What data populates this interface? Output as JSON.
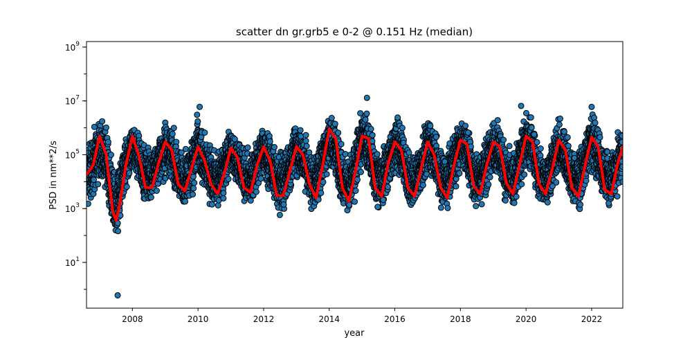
{
  "chart_data": {
    "type": "scatter",
    "title": "scatter dn gr.grb5 e 0-2 @ 0.151 Hz (median)",
    "xlabel": "year",
    "ylabel": "PSD in nm**2/s",
    "y_scale": "log",
    "xlim": [
      2006.6,
      2022.95
    ],
    "ylim": [
      0.2,
      1600000000
    ],
    "x_ticks": [
      {
        "value": 2008,
        "label": "2008"
      },
      {
        "value": 2010,
        "label": "2010"
      },
      {
        "value": 2012,
        "label": "2012"
      },
      {
        "value": 2014,
        "label": "2014"
      },
      {
        "value": 2016,
        "label": "2016"
      },
      {
        "value": 2018,
        "label": "2018"
      },
      {
        "value": 2020,
        "label": "2020"
      },
      {
        "value": 2022,
        "label": "2022"
      }
    ],
    "y_ticks": [
      {
        "value": 10,
        "base": "10",
        "exp": "1"
      },
      {
        "value": 1000,
        "base": "10",
        "exp": "3"
      },
      {
        "value": 100000,
        "base": "10",
        "exp": "5"
      },
      {
        "value": 10000000,
        "base": "10",
        "exp": "7"
      },
      {
        "value": 1000000000,
        "base": "10",
        "exp": "9"
      }
    ],
    "grid": false,
    "scatter_color": "#1f77b4",
    "scatter_edge_color": "#000000",
    "median_color": "#ff0000",
    "median_curve": {
      "x": [
        2006.6,
        2006.8,
        2007.0,
        2007.2,
        2007.4,
        2007.5,
        2007.6,
        2007.8,
        2008.0,
        2008.2,
        2008.4,
        2008.6,
        2008.8,
        2009.0,
        2009.2,
        2009.4,
        2009.6,
        2009.8,
        2010.0,
        2010.2,
        2010.4,
        2010.6,
        2010.8,
        2011.0,
        2011.2,
        2011.4,
        2011.6,
        2011.8,
        2012.0,
        2012.2,
        2012.4,
        2012.6,
        2012.8,
        2013.0,
        2013.2,
        2013.4,
        2013.6,
        2013.8,
        2014.0,
        2014.2,
        2014.4,
        2014.6,
        2014.8,
        2015.0,
        2015.2,
        2015.4,
        2015.6,
        2015.8,
        2016.0,
        2016.2,
        2016.4,
        2016.6,
        2016.8,
        2017.0,
        2017.2,
        2017.4,
        2017.6,
        2017.8,
        2018.0,
        2018.2,
        2018.4,
        2018.6,
        2018.8,
        2019.0,
        2019.2,
        2019.4,
        2019.6,
        2019.8,
        2020.0,
        2020.2,
        2020.4,
        2020.6,
        2020.8,
        2021.0,
        2021.2,
        2021.4,
        2021.6,
        2021.8,
        2022.0,
        2022.2,
        2022.4,
        2022.6,
        2022.8,
        2022.95
      ],
      "y": [
        18000,
        40000,
        500000,
        100000,
        800,
        350,
        1200,
        40000,
        500000,
        90000,
        6000,
        6000,
        50000,
        300000,
        150000,
        8000,
        4500,
        30000,
        200000,
        60000,
        8000,
        3500,
        20000,
        180000,
        80000,
        6000,
        4000,
        40000,
        200000,
        60000,
        3000,
        3000,
        25000,
        200000,
        100000,
        8000,
        2500,
        40000,
        900000,
        400000,
        6000,
        1800,
        25000,
        500000,
        400000,
        6000,
        2800,
        50000,
        300000,
        150000,
        6000,
        2800,
        30000,
        300000,
        100000,
        6000,
        2500,
        40000,
        350000,
        250000,
        7000,
        3500,
        40000,
        300000,
        200000,
        9000,
        3500,
        40000,
        500000,
        300000,
        8000,
        3500,
        30000,
        350000,
        150000,
        6000,
        2800,
        40000,
        450000,
        200000,
        5000,
        3500,
        50000,
        200000
      ]
    },
    "scatter_band": {
      "x": [
        2006.6,
        2006.8,
        2007.0,
        2007.2,
        2007.4,
        2007.5,
        2007.6,
        2007.8,
        2008.0,
        2008.2,
        2008.4,
        2008.6,
        2008.8,
        2009.0,
        2009.2,
        2009.4,
        2009.6,
        2009.8,
        2010.0,
        2010.2,
        2010.4,
        2010.6,
        2010.8,
        2011.0,
        2011.2,
        2011.4,
        2011.6,
        2011.8,
        2012.0,
        2012.2,
        2012.4,
        2012.6,
        2012.8,
        2013.0,
        2013.2,
        2013.4,
        2013.6,
        2013.8,
        2014.0,
        2014.2,
        2014.4,
        2014.6,
        2014.8,
        2015.0,
        2015.2,
        2015.4,
        2015.6,
        2015.8,
        2016.0,
        2016.2,
        2016.4,
        2016.6,
        2016.8,
        2017.0,
        2017.2,
        2017.4,
        2017.6,
        2017.8,
        2018.0,
        2018.2,
        2018.4,
        2018.6,
        2018.8,
        2019.0,
        2019.2,
        2019.4,
        2019.6,
        2019.8,
        2020.0,
        2020.2,
        2020.4,
        2020.6,
        2020.8,
        2021.0,
        2021.2,
        2021.4,
        2021.6,
        2021.8,
        2022.0,
        2022.2,
        2022.4,
        2022.6,
        2022.8,
        2022.95
      ],
      "upper": [
        700000,
        1000000,
        3000000,
        2000000,
        100000,
        40000,
        100000,
        500000,
        2000000,
        1500000,
        300000,
        300000,
        800000,
        3000000,
        2000000,
        300000,
        200000,
        600000,
        5000000,
        1000000,
        300000,
        200000,
        500000,
        2000000,
        1000000,
        300000,
        200000,
        800000,
        2000000,
        1000000,
        200000,
        200000,
        600000,
        3000000,
        1500000,
        300000,
        200000,
        1000000,
        6000000,
        3000000,
        300000,
        100000,
        600000,
        10000000,
        5000000,
        300000,
        200000,
        1000000,
        5000000,
        3000000,
        300000,
        200000,
        700000,
        3000000,
        2000000,
        300000,
        200000,
        1000000,
        4000000,
        3000000,
        300000,
        200000,
        1000000,
        3000000,
        3000000,
        300000,
        200000,
        1000000,
        6000000,
        4000000,
        300000,
        200000,
        800000,
        3000000,
        2000000,
        300000,
        200000,
        1000000,
        5000000,
        2000000,
        300000,
        200000,
        1000000,
        2000000
      ],
      "lower": [
        500,
        1200,
        10000,
        3000,
        100,
        50,
        100,
        2000,
        20000,
        5000,
        1000,
        1000,
        3000,
        10000,
        8000,
        1000,
        600,
        2000,
        8000,
        3000,
        900,
        600,
        2000,
        10000,
        5000,
        1000,
        500,
        2000,
        10000,
        3000,
        500,
        500,
        2000,
        10000,
        5000,
        800,
        500,
        3000,
        30000,
        10000,
        800,
        400,
        2000,
        20000,
        15000,
        800,
        500,
        3000,
        10000,
        8000,
        800,
        500,
        2000,
        15000,
        5000,
        800,
        600,
        3000,
        15000,
        10000,
        900,
        700,
        2000,
        10000,
        8000,
        1000,
        400,
        3000,
        20000,
        10000,
        1000,
        600,
        2000,
        10000,
        5000,
        800,
        500,
        3000,
        20000,
        5000,
        1000,
        800,
        2000,
        5000
      ]
    },
    "outliers": [
      {
        "x": 2007.55,
        "y": 0.6
      },
      {
        "x": 2010.05,
        "y": 6000000
      },
      {
        "x": 2015.15,
        "y": 13000000
      },
      {
        "x": 2022.0,
        "y": 6000000
      },
      {
        "x": 2019.85,
        "y": 6500000
      }
    ]
  }
}
